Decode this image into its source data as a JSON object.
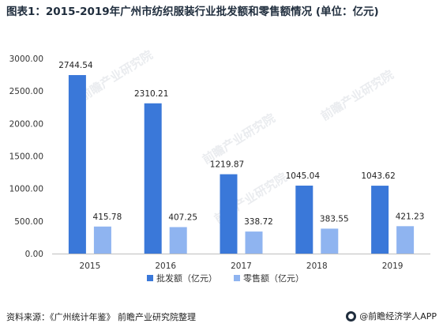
{
  "header": {
    "title": "图表1：2015-2019年广州市纺织服装行业批发额和零售额情况 (单位：亿元)"
  },
  "footer": {
    "source": "资料来源：《广州统计年鉴》 前瞻产业研究院整理",
    "brand": "@前瞻经济学人APP"
  },
  "watermark": {
    "text": "前瞻产业研究院"
  },
  "colors": {
    "wholesale": "#3a78d9",
    "retail": "#8fb4f0"
  },
  "chart_data": {
    "type": "bar",
    "categories": [
      "2015",
      "2016",
      "2017",
      "2018",
      "2019"
    ],
    "series": [
      {
        "name": "批发额（亿元）",
        "values": [
          2744.54,
          2310.21,
          1219.87,
          1045.04,
          1043.62
        ],
        "labels": [
          "2744.54",
          "2310.21",
          "1219.87",
          "1045.04",
          "1043.62"
        ]
      },
      {
        "name": "零售额（亿元）",
        "values": [
          415.78,
          407.25,
          338.72,
          383.55,
          421.23
        ],
        "labels": [
          "415.78",
          "407.25",
          "338.72",
          "383.55",
          "421.23"
        ]
      }
    ],
    "yticks": [
      "0.00",
      "500.00",
      "1000.00",
      "1500.00",
      "2000.00",
      "2500.00",
      "3000.00"
    ],
    "ylim": [
      0,
      3000
    ],
    "grid": false,
    "legend": "bottom"
  }
}
